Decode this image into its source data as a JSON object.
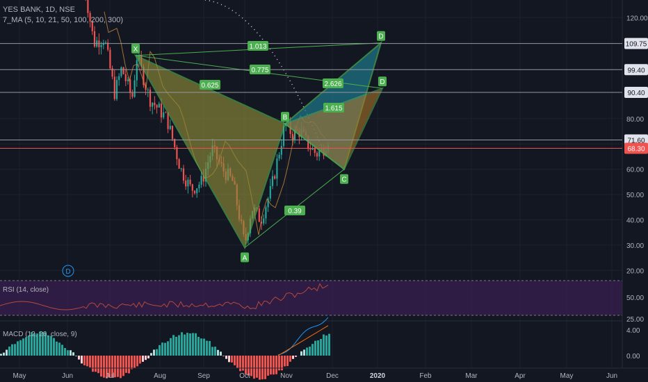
{
  "header": {
    "symbol_line": "YES BANK, 1D, NSE",
    "ma_line": "7_MA (5, 10, 21, 50, 100, 200, 300)"
  },
  "rsi_label": "RSI (14, close)",
  "macd_label": "MACD (12, 26, close, 9)",
  "colors": {
    "background": "#131722",
    "grid": "#1e222d",
    "bull": "#26a69a",
    "bear": "#ef5350",
    "pattern_line": "#4caf50",
    "pattern_fill": "#8d8a3a",
    "rsi_band": "#3b1f52",
    "rsi_line": "#b64a3a",
    "macd_line": "#2196f3",
    "signal_line": "#ff6d00",
    "price_label": "#ef5350"
  },
  "chart_data": {
    "type": "candlestick",
    "price_axis": {
      "ticks": [
        "120.00",
        "80.00",
        "70.00",
        "60.00",
        "50.00",
        "40.00",
        "30.00",
        "20.00"
      ],
      "highlighted_levels": [
        "109.75",
        "99.40",
        "90.40",
        "71.60"
      ],
      "last_price": "68.30"
    },
    "rsi_axis": {
      "ticks": [
        "50.00",
        "25.00"
      ]
    },
    "macd_axis": {
      "ticks": [
        "4.00",
        "0.00"
      ]
    },
    "x_axis_labels": [
      "May",
      "Jun",
      "Jul",
      "Aug",
      "Sep",
      "Oct",
      "Nov",
      "Dec",
      "2020",
      "Feb",
      "Mar",
      "Apr",
      "May",
      "Jun"
    ],
    "pattern_points": [
      {
        "label": "X",
        "price": 105
      },
      {
        "label": "A",
        "price": 29
      },
      {
        "label": "B",
        "price": 78
      },
      {
        "label": "C",
        "price": 60
      },
      {
        "label": "D",
        "price": 110
      },
      {
        "label": "D",
        "price": 92
      }
    ],
    "ratios": [
      "1.013",
      "0.775",
      "0.625",
      "2.626",
      "1.615",
      "0.39"
    ],
    "dividend_marker": "D"
  }
}
